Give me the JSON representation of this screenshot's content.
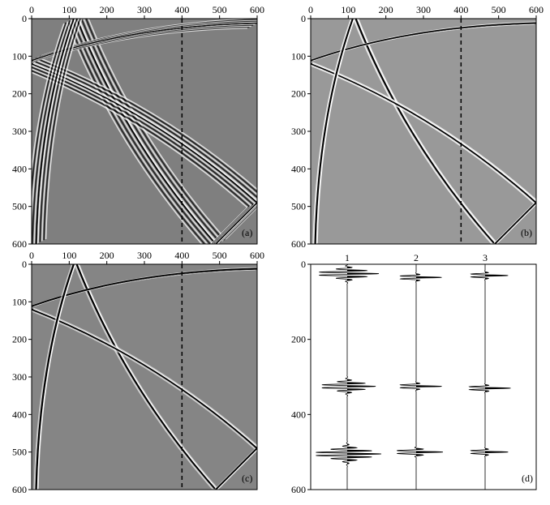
{
  "figure": {
    "panel_a_tag": "(a)",
    "panel_b_tag": "(b)",
    "panel_c_tag": "(c)",
    "panel_d_tag": "(d)"
  },
  "chart_data": [
    {
      "type": "heatmap",
      "panel": "(a)",
      "title": "",
      "xlabel": "",
      "ylabel": "",
      "xlim": [
        0,
        600
      ],
      "ylim": [
        600,
        0
      ],
      "xticks": [
        0,
        100,
        200,
        300,
        400,
        500,
        600
      ],
      "yticks": [
        0,
        100,
        200,
        300,
        400,
        500,
        600
      ],
      "grid": false,
      "annotations": {
        "dashed_vertical_line_x": 400
      },
      "colormap": "gray",
      "background": "#808080",
      "note_rendering": "multiple parallel ringing wavefronts"
    },
    {
      "type": "heatmap",
      "panel": "(b)",
      "title": "",
      "xlabel": "",
      "ylabel": "",
      "xlim": [
        0,
        600
      ],
      "ylim": [
        600,
        0
      ],
      "xticks": [
        0,
        100,
        200,
        300,
        400,
        500,
        600
      ],
      "yticks": [
        0,
        100,
        200,
        300,
        400,
        500,
        600
      ],
      "grid": false,
      "annotations": {
        "dashed_vertical_line_x": 400
      },
      "colormap": "gray",
      "background": "#9a9a9a"
    },
    {
      "type": "heatmap",
      "panel": "(c)",
      "title": "",
      "xlabel": "",
      "ylabel": "",
      "xlim": [
        0,
        600
      ],
      "ylim": [
        600,
        0
      ],
      "xticks": [
        0,
        100,
        200,
        300,
        400,
        500,
        600
      ],
      "yticks": [
        0,
        100,
        200,
        300,
        400,
        500,
        600
      ],
      "grid": false,
      "annotations": {
        "dashed_vertical_line_x": 400
      },
      "colormap": "gray",
      "background": "#858585"
    },
    {
      "type": "line",
      "panel": "(d)",
      "title": "",
      "xlabel": "",
      "ylabel": "",
      "xticks": [
        1,
        2,
        3
      ],
      "yticks": [
        0,
        200,
        400,
        600
      ],
      "ylim": [
        600,
        0
      ],
      "grid": false,
      "series": [
        {
          "trace": 1,
          "events": [
            {
              "t": 25,
              "amplitude": 1.0,
              "ringing": 6
            },
            {
              "t": 325,
              "amplitude": 0.9,
              "ringing": 6
            },
            {
              "t": 505,
              "amplitude": 1.0,
              "ringing": 8
            }
          ]
        },
        {
          "trace": 2,
          "events": [
            {
              "t": 35,
              "amplitude": 1.0,
              "ringing": 1
            },
            {
              "t": 325,
              "amplitude": 1.0,
              "ringing": 1
            },
            {
              "t": 500,
              "amplitude": 1.0,
              "ringing": 2
            }
          ]
        },
        {
          "trace": 3,
          "events": [
            {
              "t": 30,
              "amplitude": 0.9,
              "ringing": 1
            },
            {
              "t": 330,
              "amplitude": 1.0,
              "ringing": 1
            },
            {
              "t": 500,
              "amplitude": 0.9,
              "ringing": 1
            }
          ]
        }
      ]
    }
  ]
}
